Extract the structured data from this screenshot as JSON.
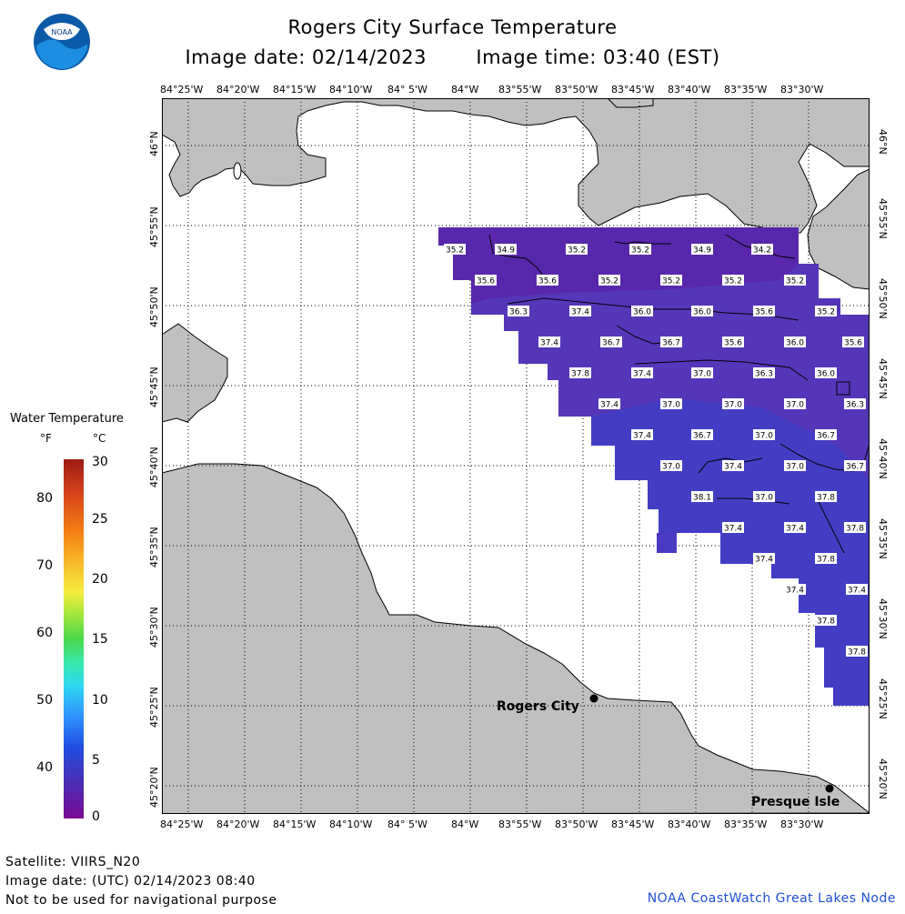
{
  "header": {
    "title": "Rogers City Surface Temperature",
    "image_date": "Image date: 02/14/2023",
    "image_time": "Image time: 03:40 (EST)"
  },
  "logo": {
    "text": "NOAA"
  },
  "axes": {
    "lon_labels": [
      "84°25'W",
      "84°20'W",
      "84°15'W",
      "84°10'W",
      "84° 5'W",
      "84°W",
      "83°55'W",
      "83°50'W",
      "83°45'W",
      "83°40'W",
      "83°35'W",
      "83°30'W"
    ],
    "lat_labels": [
      "46°N",
      "45°55'N",
      "45°50'N",
      "45°45'N",
      "45°40'N",
      "45°35'N",
      "45°30'N",
      "45°25'N",
      "45°20'N"
    ]
  },
  "legend": {
    "title": "Water Temperature",
    "unit_f": "°F",
    "unit_c": "°C",
    "f_ticks": [
      "80",
      "70",
      "60",
      "50",
      "40"
    ],
    "c_ticks": [
      "30",
      "25",
      "20",
      "15",
      "10",
      "5",
      "0"
    ],
    "colors": {
      "low": "#7a0a93",
      "high": "#9d1a12"
    }
  },
  "places": {
    "rogers_city": "Rogers City",
    "presque_isle": "Presque Isle"
  },
  "temperatures": [
    {
      "r": 0,
      "c": 0,
      "v": "35.2"
    },
    {
      "r": 0,
      "c": 1,
      "v": "34.9"
    },
    {
      "r": 0,
      "c": 2,
      "v": "35.2"
    },
    {
      "r": 0,
      "c": 3,
      "v": "35.2"
    },
    {
      "r": 0,
      "c": 4,
      "v": "34.9"
    },
    {
      "r": 0,
      "c": 5,
      "v": "34.2"
    },
    {
      "r": 1,
      "c": 0,
      "v": "35.6"
    },
    {
      "r": 1,
      "c": 1,
      "v": "35.6"
    },
    {
      "r": 1,
      "c": 2,
      "v": "35.2"
    },
    {
      "r": 1,
      "c": 3,
      "v": "35.2"
    },
    {
      "r": 1,
      "c": 4,
      "v": "35.2"
    },
    {
      "r": 1,
      "c": 5,
      "v": "35.2"
    },
    {
      "r": 2,
      "c": 0,
      "v": "36.3"
    },
    {
      "r": 2,
      "c": 1,
      "v": "37.4"
    },
    {
      "r": 2,
      "c": 2,
      "v": "36.0"
    },
    {
      "r": 2,
      "c": 3,
      "v": "36.0"
    },
    {
      "r": 2,
      "c": 4,
      "v": "35.6"
    },
    {
      "r": 2,
      "c": 5,
      "v": "35.2"
    },
    {
      "r": 3,
      "c": 0,
      "v": "37.4"
    },
    {
      "r": 3,
      "c": 1,
      "v": "36.7"
    },
    {
      "r": 3,
      "c": 2,
      "v": "36.7"
    },
    {
      "r": 3,
      "c": 3,
      "v": "35.6"
    },
    {
      "r": 3,
      "c": 4,
      "v": "36.0"
    },
    {
      "r": 3,
      "c": 5,
      "v": "35.6"
    },
    {
      "r": 4,
      "c": 0,
      "v": "37.8"
    },
    {
      "r": 4,
      "c": 1,
      "v": "37.4"
    },
    {
      "r": 4,
      "c": 2,
      "v": "37.0"
    },
    {
      "r": 4,
      "c": 3,
      "v": "36.3"
    },
    {
      "r": 4,
      "c": 4,
      "v": "36.0"
    },
    {
      "r": 5,
      "c": 0,
      "v": "37.4"
    },
    {
      "r": 5,
      "c": 1,
      "v": "37.0"
    },
    {
      "r": 5,
      "c": 2,
      "v": "37.0"
    },
    {
      "r": 5,
      "c": 3,
      "v": "37.0"
    },
    {
      "r": 5,
      "c": 4,
      "v": "36.3"
    },
    {
      "r": 6,
      "c": 0,
      "v": "37.4"
    },
    {
      "r": 6,
      "c": 1,
      "v": "36.7"
    },
    {
      "r": 6,
      "c": 2,
      "v": "37.0"
    },
    {
      "r": 6,
      "c": 3,
      "v": "36.7"
    },
    {
      "r": 7,
      "c": 0,
      "v": "37.0"
    },
    {
      "r": 7,
      "c": 1,
      "v": "37.4"
    },
    {
      "r": 7,
      "c": 2,
      "v": "37.0"
    },
    {
      "r": 7,
      "c": 3,
      "v": "36.7"
    },
    {
      "r": 8,
      "c": 0,
      "v": "38.1"
    },
    {
      "r": 8,
      "c": 1,
      "v": "37.0"
    },
    {
      "r": 8,
      "c": 2,
      "v": "37.8"
    },
    {
      "r": 9,
      "c": 0,
      "v": "37.4"
    },
    {
      "r": 9,
      "c": 1,
      "v": "37.4"
    },
    {
      "r": 9,
      "c": 2,
      "v": "37.8"
    },
    {
      "r": 10,
      "c": 0,
      "v": "37.4"
    },
    {
      "r": 10,
      "c": 1,
      "v": "37.8"
    },
    {
      "r": 11,
      "c": 0,
      "v": "37.4"
    },
    {
      "r": 11,
      "c": 1,
      "v": "37.4"
    },
    {
      "r": 12,
      "c": 0,
      "v": "37.8"
    },
    {
      "r": 13,
      "c": 0,
      "v": "37.8"
    }
  ],
  "footer": {
    "satellite": "Satellite: VIIRS_N20",
    "utc_date": "Image date: (UTC) 02/14/2023  08:40",
    "disclaimer": "Not to be used for navigational purpose",
    "credit": "NOAA CoastWatch Great Lakes Node"
  }
}
